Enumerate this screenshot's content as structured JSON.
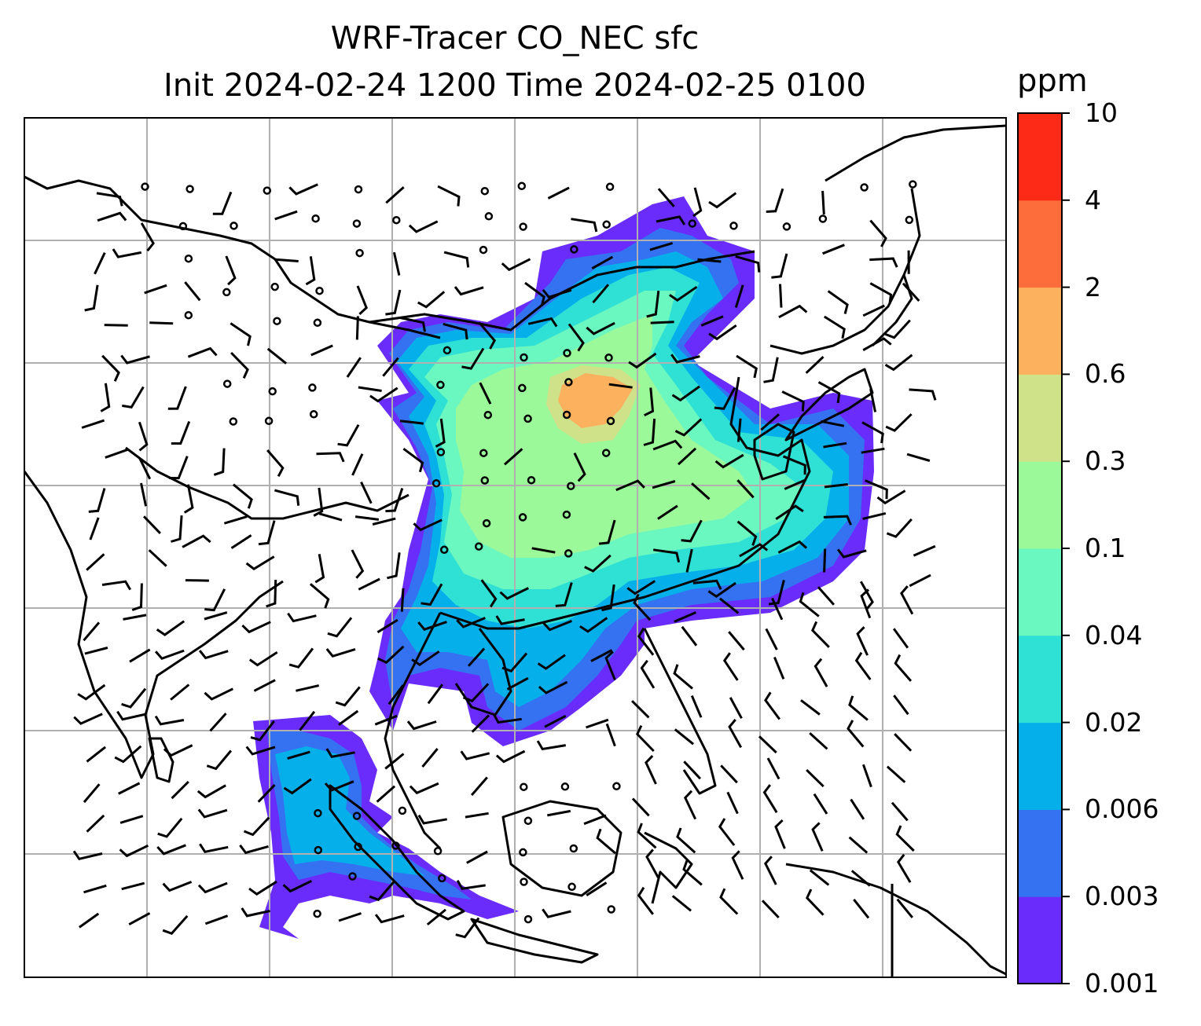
{
  "title": {
    "line1": "WRF-Tracer CO_NEC sfc",
    "line2": "Init 2024-02-24 1200 Time 2024-02-25 0100"
  },
  "map": {
    "region": "East and Southeast Asia",
    "extent_lon": [
      70,
      150
    ],
    "extent_lat": [
      -10,
      60
    ],
    "gridlines": true,
    "field": "CO_NEC surface tracer concentration",
    "overlay": "wind barbs"
  },
  "colorbar": {
    "unit": "ppm",
    "ticks": [
      "0.001",
      "0.003",
      "0.006",
      "0.02",
      "0.04",
      "0.1",
      "0.3",
      "0.6",
      "2",
      "4",
      "10"
    ],
    "colors": [
      "#6a2cfa",
      "#3472f2",
      "#05b0ea",
      "#2fe0d4",
      "#6af7c0",
      "#9cf99a",
      "#cfe28a",
      "#fcb15f",
      "#fd6c3b",
      "#fc2a16"
    ]
  }
}
